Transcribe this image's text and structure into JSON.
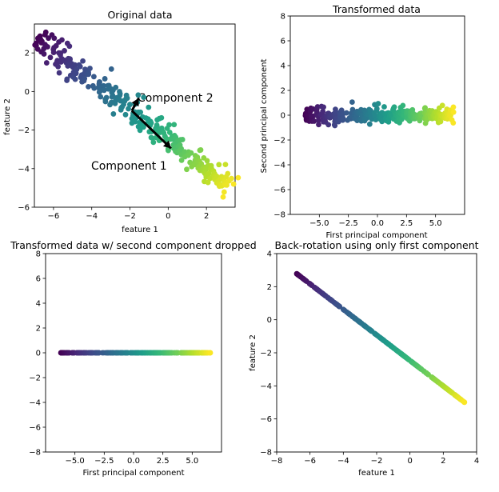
{
  "chart_data": [
    {
      "type": "scatter",
      "title": "Original data",
      "xlabel": "feature 1",
      "ylabel": "feature 2",
      "xlim": [
        -7,
        3.5
      ],
      "ylim": [
        -6,
        3.5
      ],
      "xticks": [
        -6,
        -4,
        -2,
        0,
        2
      ],
      "yticks": [
        -6,
        -4,
        -2,
        0,
        2
      ],
      "xtick_labels": [
        "−6",
        "−4",
        "−2",
        "0",
        "2"
      ],
      "ytick_labels": [
        "−6",
        "−4",
        "−2",
        "0",
        "2"
      ],
      "grid": false,
      "colormap": "viridis",
      "generator": {
        "t_min": -6.2,
        "t_max": 6.6,
        "count": 300,
        "mean": [
          -1.9,
          -1.0
        ],
        "c1": [
          0.79,
          -0.61
        ],
        "c2": [
          0.61,
          0.79
        ],
        "spread": 0.32,
        "seed": 7
      },
      "annotations": [
        {
          "text": "Component 1",
          "x": -4,
          "y": -4,
          "arrow_from": [
            -1.9,
            -1.0
          ],
          "arrow_to": [
            0.15,
            -2.95
          ]
        },
        {
          "text": "Component 2",
          "x": -1.5,
          "y": -0.5,
          "arrow_from": [
            -1.9,
            -1.0
          ],
          "arrow_to": [
            -1.55,
            -0.35
          ]
        }
      ]
    },
    {
      "type": "scatter",
      "title": "Transformed data",
      "xlabel": "First principal component",
      "ylabel": "Second principal component",
      "xlim": [
        -7.5,
        7.5
      ],
      "ylim": [
        -8,
        8
      ],
      "xticks": [
        -5,
        -2.5,
        0,
        2.5,
        5
      ],
      "yticks": [
        -8,
        -6,
        -4,
        -2,
        0,
        2,
        4,
        6,
        8
      ],
      "xtick_labels": [
        "−5.0",
        "−2.5",
        "0.0",
        "2.5",
        "5.0"
      ],
      "ytick_labels": [
        "−8",
        "−6",
        "−4",
        "−2",
        "0",
        "2",
        "4",
        "6",
        "8"
      ],
      "grid": false,
      "colormap": "viridis"
    },
    {
      "type": "scatter",
      "title": "Transformed data w/ second component dropped",
      "xlabel": "First principal component",
      "ylabel": "",
      "xlim": [
        -7.5,
        7.5
      ],
      "ylim": [
        -8,
        8
      ],
      "xticks": [
        -5,
        -2.5,
        0,
        2.5,
        5
      ],
      "yticks": [
        -8,
        -6,
        -4,
        -2,
        0,
        2,
        4,
        6,
        8
      ],
      "xtick_labels": [
        "−5.0",
        "−2.5",
        "0.0",
        "2.5",
        "5.0"
      ],
      "ytick_labels": [
        "−8",
        "−6",
        "−4",
        "−2",
        "0",
        "2",
        "4",
        "6",
        "8"
      ],
      "grid": false,
      "colormap": "viridis"
    },
    {
      "type": "scatter",
      "title": "Back-rotation using only first component",
      "xlabel": "feature 1",
      "ylabel": "feature 2",
      "xlim": [
        -8,
        4
      ],
      "ylim": [
        -8,
        4
      ],
      "xticks": [
        -8,
        -6,
        -4,
        -2,
        0,
        2,
        4
      ],
      "yticks": [
        -8,
        -6,
        -4,
        -2,
        0,
        2,
        4
      ],
      "xtick_labels": [
        "−8",
        "−6",
        "−4",
        "−2",
        "0",
        "2",
        "4"
      ],
      "ytick_labels": [
        "−8",
        "−6",
        "−4",
        "−2",
        "0",
        "2",
        "4"
      ],
      "grid": false,
      "colormap": "viridis"
    }
  ]
}
